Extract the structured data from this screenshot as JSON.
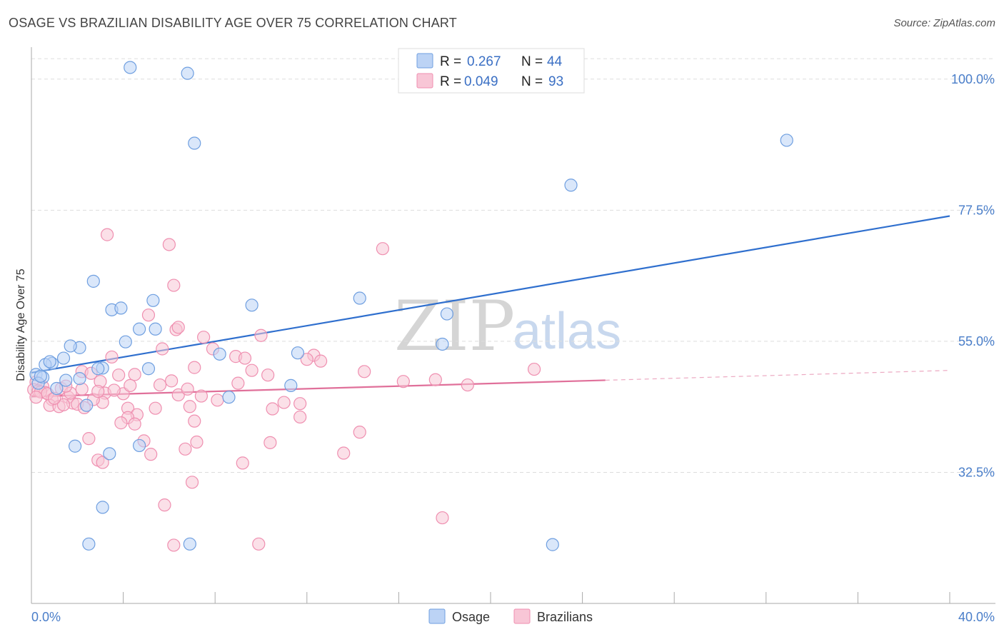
{
  "title": "OSAGE VS BRAZILIAN DISABILITY AGE OVER 75 CORRELATION CHART",
  "source": "Source: ZipAtlas.com",
  "colors": {
    "osage": "#6f9fe0",
    "osage_fill": "#bcd3f5",
    "osage_line": "#2f6fce",
    "brazilians": "#ef8fb0",
    "brazilians_fill": "#f8c6d6",
    "brazilians_line": "#e0709a",
    "grid": "#dddddd",
    "tick": "#4a7ec9"
  },
  "legend": {
    "rows": [
      {
        "r_label": "R =",
        "r_value": "0.267",
        "n_label": "N =",
        "n_value": "44"
      },
      {
        "r_label": "R =",
        "r_value": "0.049",
        "n_label": "N =",
        "n_value": "93"
      }
    ]
  },
  "bottom_legend": [
    "Osage",
    "Brazilians"
  ],
  "watermark": {
    "zip": "ZIP",
    "atlas": "atlas"
  },
  "chart_data": {
    "type": "scatter",
    "title": "OSAGE VS BRAZILIAN DISABILITY AGE OVER 75 CORRELATION CHART",
    "xlabel": "",
    "ylabel": "Disability Age Over 75",
    "xlim": [
      0,
      40
    ],
    "ylim": [
      10,
      105
    ],
    "x_tick_labels": [
      "0.0%",
      "40.0%"
    ],
    "y_ticks": [
      32.5,
      55.0,
      77.5,
      100.0
    ],
    "y_tick_labels": [
      "32.5%",
      "55.0%",
      "77.5%",
      "100.0%"
    ],
    "grid": true,
    "series": [
      {
        "name": "Osage",
        "R": 0.267,
        "N": 44,
        "trend": {
          "x": [
            0,
            40
          ],
          "y": [
            49.6,
            76.5
          ],
          "dashed_from": null
        },
        "points": [
          [
            4.3,
            102.0
          ],
          [
            6.8,
            101.0
          ],
          [
            7.1,
            89.0
          ],
          [
            32.9,
            89.5
          ],
          [
            23.5,
            81.8
          ],
          [
            2.7,
            65.3
          ],
          [
            3.5,
            60.4
          ],
          [
            3.9,
            60.7
          ],
          [
            5.3,
            62.0
          ],
          [
            14.3,
            62.4
          ],
          [
            18.1,
            59.7
          ],
          [
            9.6,
            61.2
          ],
          [
            4.1,
            54.9
          ],
          [
            4.7,
            57.1
          ],
          [
            5.4,
            57.1
          ],
          [
            2.1,
            53.9
          ],
          [
            1.7,
            54.2
          ],
          [
            17.9,
            54.5
          ],
          [
            11.6,
            53.0
          ],
          [
            8.2,
            52.8
          ],
          [
            1.4,
            52.1
          ],
          [
            0.9,
            51.2
          ],
          [
            0.6,
            51.0
          ],
          [
            0.8,
            51.5
          ],
          [
            3.1,
            50.4
          ],
          [
            5.1,
            50.3
          ],
          [
            2.9,
            50.3
          ],
          [
            0.2,
            49.3
          ],
          [
            0.5,
            48.8
          ],
          [
            1.5,
            48.3
          ],
          [
            2.1,
            48.6
          ],
          [
            11.3,
            47.4
          ],
          [
            1.1,
            46.9
          ],
          [
            8.6,
            45.4
          ],
          [
            2.4,
            44.0
          ],
          [
            1.9,
            37.0
          ],
          [
            3.4,
            35.7
          ],
          [
            4.7,
            37.1
          ],
          [
            3.1,
            26.5
          ],
          [
            2.5,
            20.2
          ],
          [
            6.9,
            20.2
          ],
          [
            22.7,
            20.1
          ],
          [
            0.3,
            47.8
          ],
          [
            0.4,
            49.0
          ]
        ]
      },
      {
        "name": "Brazilians",
        "R": 0.049,
        "N": 93,
        "trend": {
          "x": [
            0,
            40
          ],
          "y": [
            45.5,
            50.0
          ],
          "dashed_from": 25.0
        },
        "points": [
          [
            3.3,
            73.3
          ],
          [
            6.0,
            71.6
          ],
          [
            15.3,
            70.9
          ],
          [
            6.2,
            64.6
          ],
          [
            5.1,
            59.5
          ],
          [
            6.3,
            57.0
          ],
          [
            6.4,
            57.4
          ],
          [
            7.5,
            55.7
          ],
          [
            10.0,
            56.0
          ],
          [
            7.9,
            53.7
          ],
          [
            5.7,
            53.7
          ],
          [
            12.3,
            52.6
          ],
          [
            8.9,
            52.4
          ],
          [
            3.5,
            52.3
          ],
          [
            9.3,
            52.1
          ],
          [
            12.0,
            51.9
          ],
          [
            21.9,
            50.2
          ],
          [
            7.1,
            50.5
          ],
          [
            2.2,
            49.8
          ],
          [
            2.6,
            49.5
          ],
          [
            3.8,
            49.2
          ],
          [
            4.5,
            49.3
          ],
          [
            6.1,
            48.2
          ],
          [
            17.6,
            48.4
          ],
          [
            3.0,
            48.1
          ],
          [
            0.2,
            48.0
          ],
          [
            0.5,
            47.2
          ],
          [
            1.3,
            46.9
          ],
          [
            2.2,
            46.8
          ],
          [
            0.1,
            46.7
          ],
          [
            0.3,
            46.5
          ],
          [
            0.6,
            46.2
          ],
          [
            4.0,
            46.0
          ],
          [
            3.2,
            46.1
          ],
          [
            6.4,
            45.8
          ],
          [
            1.6,
            45.4
          ],
          [
            0.9,
            45.0
          ],
          [
            1.8,
            44.4
          ],
          [
            2.0,
            44.2
          ],
          [
            3.1,
            44.5
          ],
          [
            0.8,
            44.0
          ],
          [
            1.2,
            43.8
          ],
          [
            1.4,
            44.1
          ],
          [
            2.3,
            43.6
          ],
          [
            4.2,
            43.5
          ],
          [
            5.4,
            43.5
          ],
          [
            6.9,
            43.8
          ],
          [
            10.5,
            43.4
          ],
          [
            11.0,
            44.5
          ],
          [
            11.7,
            44.3
          ],
          [
            4.6,
            42.4
          ],
          [
            4.2,
            41.9
          ],
          [
            7.1,
            41.3
          ],
          [
            11.7,
            42.0
          ],
          [
            3.9,
            41.0
          ],
          [
            4.5,
            40.8
          ],
          [
            14.3,
            39.4
          ],
          [
            2.5,
            38.3
          ],
          [
            4.9,
            37.9
          ],
          [
            7.2,
            37.7
          ],
          [
            10.4,
            37.6
          ],
          [
            6.7,
            36.5
          ],
          [
            13.6,
            35.8
          ],
          [
            5.2,
            35.6
          ],
          [
            2.9,
            34.6
          ],
          [
            3.1,
            34.2
          ],
          [
            9.2,
            34.1
          ],
          [
            7.0,
            30.8
          ],
          [
            5.8,
            26.9
          ],
          [
            17.9,
            24.7
          ],
          [
            6.2,
            20.0
          ],
          [
            9.9,
            20.2
          ],
          [
            0.4,
            46.3
          ],
          [
            0.7,
            46.0
          ],
          [
            1.0,
            45.2
          ],
          [
            1.7,
            46.1
          ],
          [
            2.7,
            45.0
          ],
          [
            3.6,
            46.6
          ],
          [
            4.3,
            47.4
          ],
          [
            5.6,
            47.5
          ],
          [
            6.8,
            46.8
          ],
          [
            7.4,
            45.6
          ],
          [
            8.1,
            44.9
          ],
          [
            9.0,
            47.8
          ],
          [
            9.6,
            50.0
          ],
          [
            10.3,
            49.2
          ],
          [
            12.6,
            51.6
          ],
          [
            14.5,
            49.8
          ],
          [
            16.2,
            48.1
          ],
          [
            19.0,
            47.5
          ],
          [
            0.2,
            45.4
          ],
          [
            1.5,
            47.3
          ],
          [
            2.9,
            46.4
          ]
        ]
      }
    ]
  }
}
